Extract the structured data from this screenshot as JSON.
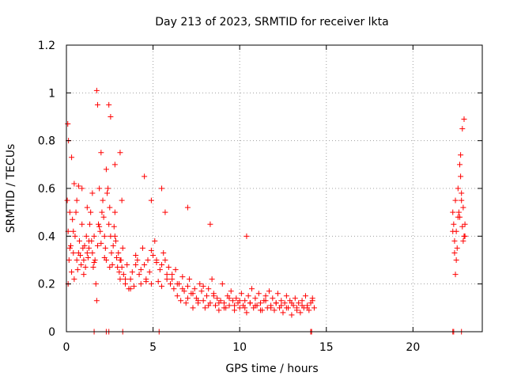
{
  "chart_data": {
    "type": "scatter",
    "title": "Day 213 of 2023, SRMTID for receiver lkta",
    "xlabel": "GPS time / hours",
    "ylabel": "SRMTID / TECUs",
    "xlim": [
      0,
      24
    ],
    "ylim": [
      0,
      1.2
    ],
    "x_ticks": [
      0,
      5,
      10,
      15,
      20
    ],
    "x_tick_labels": [
      "0",
      "5",
      "10",
      "15",
      "20"
    ],
    "y_ticks": [
      0,
      0.2,
      0.4,
      0.6,
      0.8,
      1.0,
      1.2
    ],
    "y_tick_labels": [
      "0",
      "0.2",
      "0.4",
      "0.6",
      "0.8",
      "1",
      "1.2"
    ],
    "grid": true,
    "marker": "plus",
    "color": "#ff0000",
    "series": [
      {
        "name": "SRMTID",
        "x": [
          0.05,
          0.1,
          0.15,
          0.2,
          0.25,
          0.3,
          0.35,
          0.4,
          0.45,
          0.5,
          0.55,
          0.6,
          0.65,
          0.7,
          0.75,
          0.8,
          0.85,
          0.9,
          0.95,
          1.0,
          1.05,
          1.1,
          1.15,
          1.2,
          1.25,
          1.3,
          1.35,
          1.4,
          1.45,
          1.5,
          1.55,
          1.6,
          1.65,
          1.7,
          1.75,
          1.8,
          1.85,
          1.9,
          1.95,
          2.0,
          2.05,
          2.1,
          2.15,
          2.2,
          2.25,
          2.3,
          2.35,
          2.4,
          2.45,
          2.5,
          2.55,
          2.6,
          2.65,
          2.7,
          2.75,
          2.8,
          2.85,
          2.9,
          2.95,
          3.0,
          3.05,
          3.1,
          3.15,
          3.2,
          3.25,
          3.3,
          3.4,
          3.5,
          3.6,
          3.7,
          3.8,
          3.9,
          4.0,
          4.1,
          4.2,
          4.3,
          4.4,
          4.5,
          4.6,
          4.7,
          4.8,
          4.9,
          5.0,
          5.1,
          5.2,
          5.3,
          5.4,
          5.5,
          5.6,
          5.7,
          5.8,
          5.9,
          6.0,
          6.1,
          6.2,
          6.3,
          6.4,
          6.5,
          6.6,
          6.7,
          6.8,
          6.9,
          7.0,
          7.1,
          7.2,
          7.3,
          7.4,
          7.5,
          7.6,
          7.7,
          7.8,
          7.9,
          8.0,
          8.1,
          8.2,
          8.3,
          8.4,
          8.5,
          8.6,
          8.7,
          8.8,
          8.9,
          9.0,
          9.1,
          9.2,
          9.3,
          9.4,
          9.5,
          9.6,
          9.7,
          9.8,
          9.9,
          10.0,
          10.1,
          10.2,
          10.3,
          10.4,
          10.5,
          10.6,
          10.7,
          10.8,
          10.9,
          11.0,
          11.1,
          11.2,
          11.3,
          11.4,
          11.5,
          11.6,
          11.7,
          11.8,
          11.9,
          12.0,
          12.1,
          12.2,
          12.3,
          12.4,
          12.5,
          12.6,
          12.7,
          12.8,
          12.9,
          13.0,
          13.1,
          13.2,
          13.3,
          13.4,
          13.5,
          13.6,
          13.7,
          13.8,
          13.9,
          14.0,
          14.1,
          14.2,
          14.3,
          0.08,
          0.12,
          0.3,
          0.45,
          0.6,
          0.9,
          1.2,
          1.5,
          1.75,
          1.8,
          2.0,
          2.3,
          2.45,
          2.55,
          2.8,
          3.1,
          3.2,
          4.5,
          4.9,
          5.5,
          5.7,
          7.0,
          8.3,
          10.4,
          0.1,
          0.2,
          0.4,
          0.7,
          1.0,
          1.3,
          1.6,
          1.9,
          2.2,
          2.5,
          2.8,
          3.1,
          3.4,
          3.7,
          4.0,
          4.3,
          4.6,
          4.9,
          5.2,
          5.5,
          5.8,
          6.1,
          6.4,
          6.7,
          7.0,
          7.3,
          7.6,
          7.9,
          8.2,
          8.5,
          8.8,
          9.1,
          9.4,
          9.7,
          10.0,
          10.3,
          10.6,
          10.9,
          11.2,
          11.5,
          11.8,
          12.1,
          12.4,
          12.7,
          13.0,
          13.3,
          13.6,
          13.9,
          14.2,
          22.3,
          22.35,
          22.4,
          22.45,
          22.5,
          22.55,
          22.6,
          22.65,
          22.7,
          22.75,
          22.8,
          22.85,
          22.9,
          22.95,
          23.0,
          22.3,
          22.4,
          22.5,
          22.6,
          22.7,
          22.8,
          22.9,
          23.0,
          22.45,
          22.75,
          22.85,
          22.95,
          1.6,
          2.3,
          2.45,
          3.25,
          5.35,
          14.1,
          14.15,
          22.3,
          22.35,
          22.8
        ],
        "y": [
          0.55,
          0.42,
          0.3,
          0.5,
          0.36,
          0.25,
          0.47,
          0.33,
          0.22,
          0.4,
          0.5,
          0.3,
          0.26,
          0.61,
          0.38,
          0.32,
          0.28,
          0.45,
          0.35,
          0.3,
          0.36,
          0.27,
          0.4,
          0.33,
          0.31,
          0.35,
          0.45,
          0.5,
          0.38,
          0.33,
          0.27,
          0.4,
          0.3,
          0.2,
          0.13,
          0.36,
          0.45,
          0.6,
          0.42,
          0.37,
          0.5,
          0.55,
          0.48,
          0.4,
          0.35,
          0.3,
          0.58,
          0.6,
          0.45,
          0.52,
          0.4,
          0.33,
          0.28,
          0.36,
          0.44,
          0.5,
          0.38,
          0.31,
          0.27,
          0.33,
          0.25,
          0.22,
          0.3,
          0.27,
          0.35,
          0.24,
          0.2,
          0.28,
          0.18,
          0.22,
          0.25,
          0.19,
          0.28,
          0.3,
          0.24,
          0.2,
          0.35,
          0.28,
          0.22,
          0.3,
          0.25,
          0.2,
          0.32,
          0.38,
          0.29,
          0.21,
          0.26,
          0.19,
          0.33,
          0.3,
          0.22,
          0.27,
          0.2,
          0.24,
          0.18,
          0.26,
          0.15,
          0.2,
          0.13,
          0.23,
          0.17,
          0.12,
          0.19,
          0.22,
          0.16,
          0.1,
          0.18,
          0.14,
          0.12,
          0.2,
          0.17,
          0.13,
          0.1,
          0.15,
          0.18,
          0.12,
          0.22,
          0.16,
          0.11,
          0.14,
          0.09,
          0.13,
          0.2,
          0.12,
          0.1,
          0.15,
          0.11,
          0.17,
          0.13,
          0.09,
          0.14,
          0.12,
          0.1,
          0.16,
          0.11,
          0.13,
          0.08,
          0.15,
          0.12,
          0.18,
          0.1,
          0.14,
          0.11,
          0.16,
          0.12,
          0.09,
          0.13,
          0.15,
          0.1,
          0.17,
          0.11,
          0.14,
          0.09,
          0.12,
          0.16,
          0.1,
          0.13,
          0.08,
          0.12,
          0.15,
          0.1,
          0.13,
          0.07,
          0.11,
          0.14,
          0.1,
          0.12,
          0.08,
          0.13,
          0.1,
          0.15,
          0.11,
          0.09,
          0.12,
          0.14,
          0.1,
          0.87,
          0.8,
          0.73,
          0.62,
          0.55,
          0.6,
          0.52,
          0.58,
          1.01,
          0.95,
          0.75,
          0.68,
          0.95,
          0.9,
          0.7,
          0.75,
          0.55,
          0.65,
          0.55,
          0.6,
          0.5,
          0.52,
          0.45,
          0.4,
          0.2,
          0.35,
          0.42,
          0.33,
          0.24,
          0.38,
          0.29,
          0.44,
          0.31,
          0.27,
          0.4,
          0.3,
          0.22,
          0.18,
          0.32,
          0.26,
          0.21,
          0.34,
          0.3,
          0.28,
          0.24,
          0.22,
          0.2,
          0.18,
          0.14,
          0.16,
          0.13,
          0.19,
          0.11,
          0.15,
          0.12,
          0.1,
          0.14,
          0.11,
          0.13,
          0.1,
          0.12,
          0.11,
          0.09,
          0.13,
          0.1,
          0.12,
          0.11,
          0.1,
          0.12,
          0.09,
          0.11,
          0.1,
          0.13,
          0.5,
          0.45,
          0.38,
          0.55,
          0.42,
          0.35,
          0.6,
          0.5,
          0.48,
          0.65,
          0.55,
          0.44,
          0.52,
          0.4,
          0.45,
          0.42,
          0.33,
          0.3,
          0.48,
          0.7,
          0.58,
          0.38,
          0.4,
          0.24,
          0.74,
          0.85,
          0.89,
          0.0,
          0.0,
          0.0,
          0.0,
          0.0,
          0.0,
          0.0,
          0.0,
          0.0,
          0.0
        ]
      }
    ]
  }
}
